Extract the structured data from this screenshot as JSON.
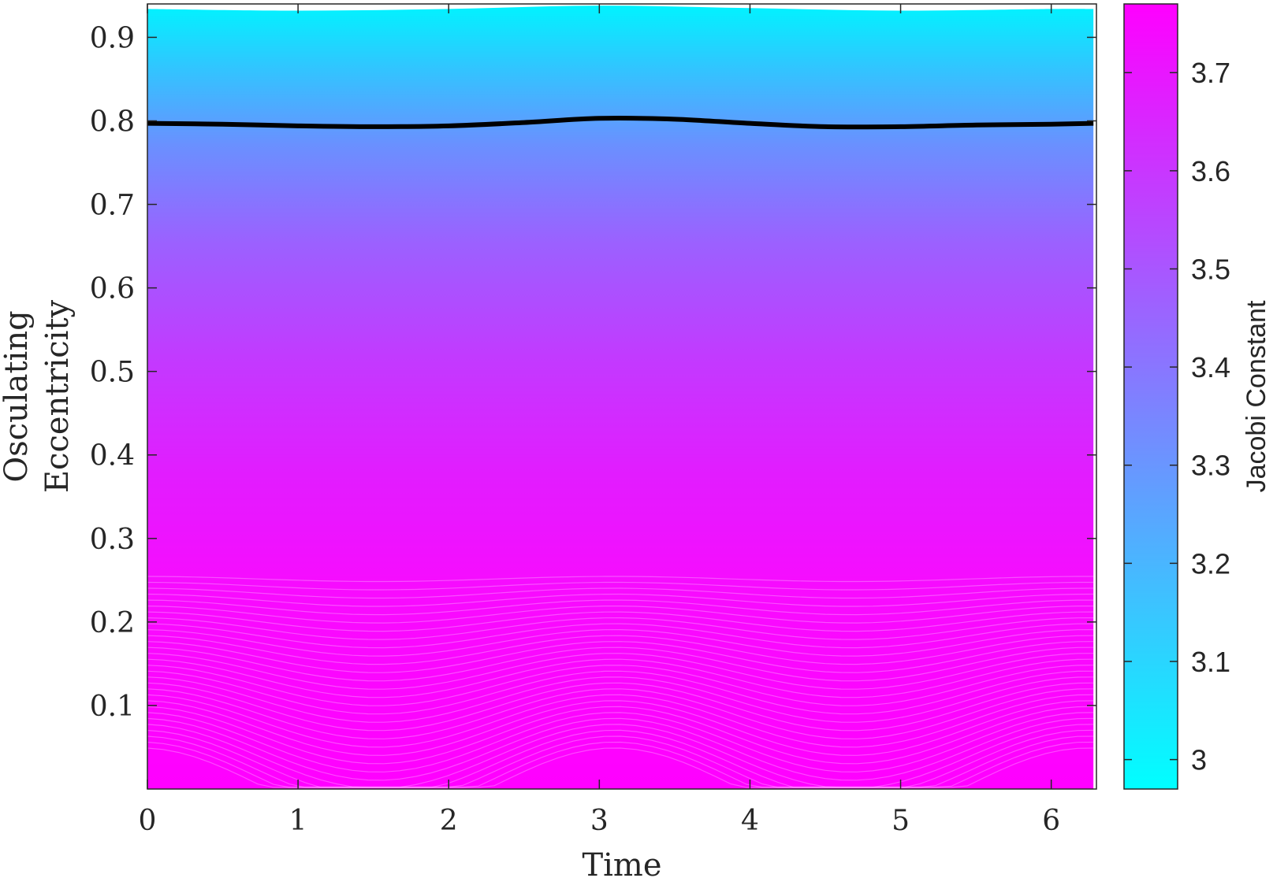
{
  "chart_data": {
    "type": "area",
    "xlabel": "Time",
    "ylabel_lines": [
      "Osculating",
      "Eccentricity"
    ],
    "xlim": [
      0,
      6.3
    ],
    "ylim": [
      0,
      0.94
    ],
    "xticks": [
      0,
      1,
      2,
      3,
      4,
      5,
      6
    ],
    "yticks": [
      0.1,
      0.2,
      0.3,
      0.4,
      0.5,
      0.6,
      0.7,
      0.8,
      0.9
    ],
    "grid": false,
    "legend": "none",
    "colorbar": {
      "label": "Jacobi Constant",
      "range": [
        2.97,
        3.77
      ],
      "ticks": [
        3,
        3.1,
        3.2,
        3.3,
        3.4,
        3.5,
        3.6,
        3.7
      ],
      "colormap": "cool",
      "low_color": "#00ffff",
      "high_color": "#ff00ff"
    },
    "highlight_series": {
      "color": "#000000",
      "x": [
        0,
        0.5,
        1,
        1.5,
        2,
        2.5,
        3,
        3.5,
        4,
        4.5,
        5,
        5.5,
        6,
        6.28
      ],
      "y": [
        0.797,
        0.796,
        0.794,
        0.793,
        0.794,
        0.798,
        0.803,
        0.802,
        0.797,
        0.793,
        0.793,
        0.795,
        0.796,
        0.797
      ]
    },
    "filled_region": {
      "x_range": [
        0,
        6.28
      ],
      "upper_envelope_x": [
        0,
        1,
        2,
        3,
        4,
        5,
        6,
        6.28
      ],
      "upper_envelope_y": [
        0.934,
        0.932,
        0.934,
        0.938,
        0.935,
        0.932,
        0.934,
        0.934
      ],
      "bottom_y": 0
    }
  }
}
